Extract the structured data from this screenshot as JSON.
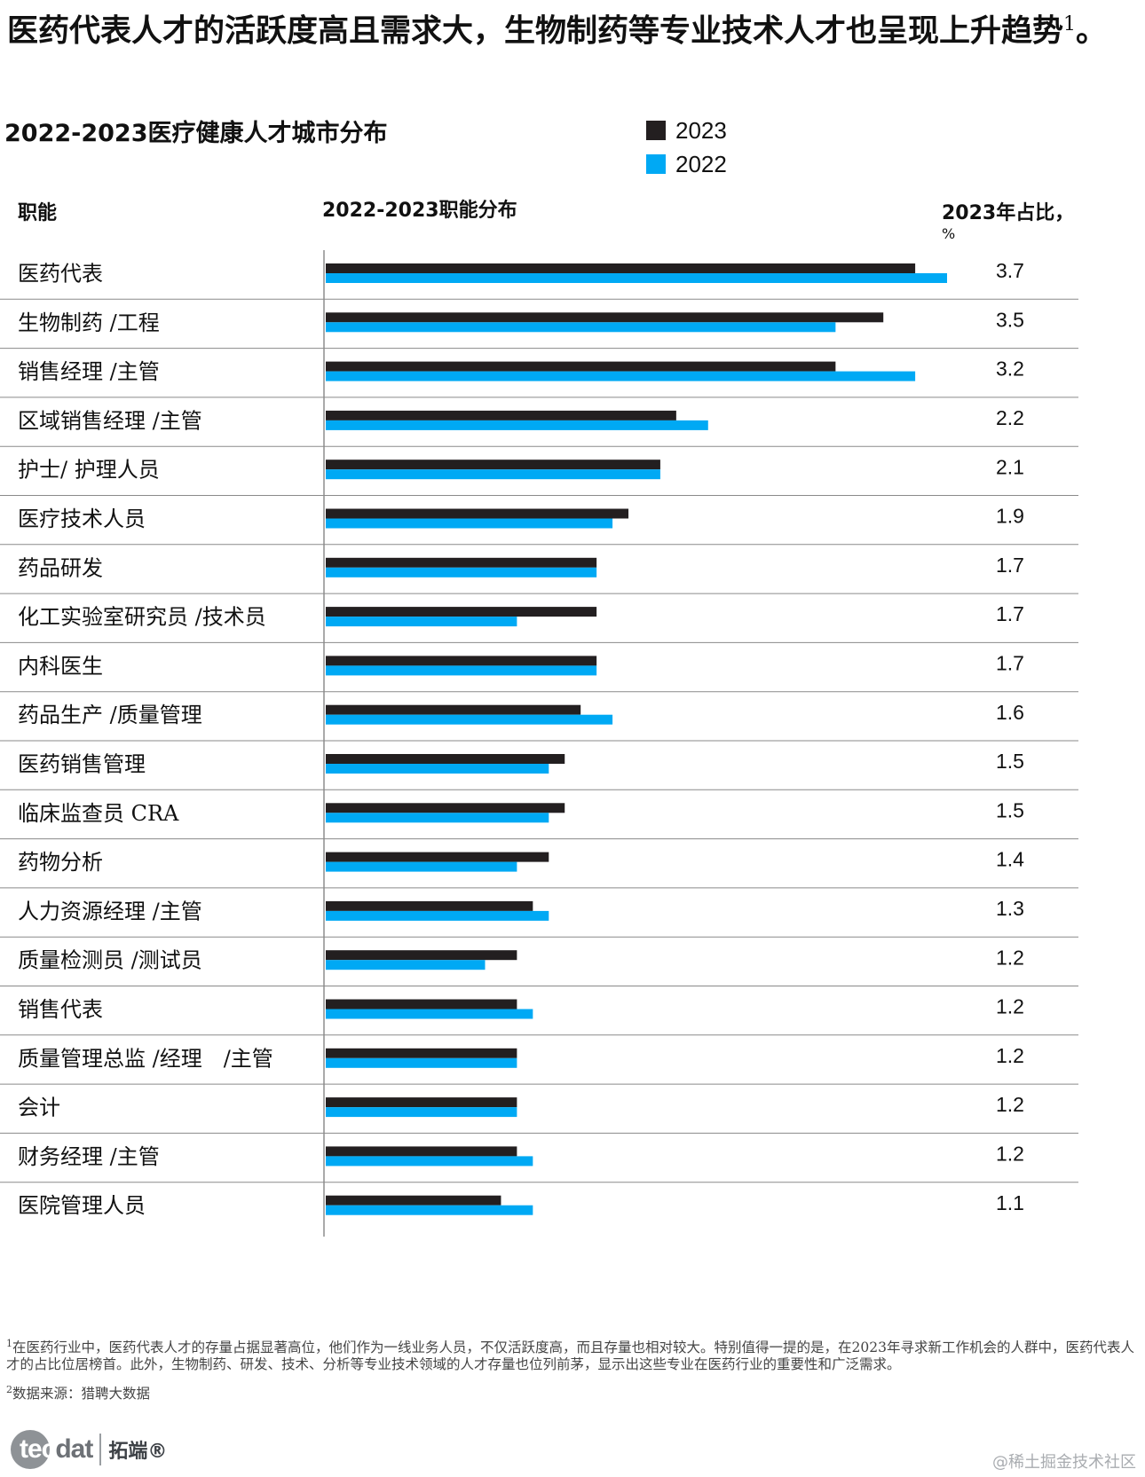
{
  "headline": "医药代表人才的活跃度高且需求大，生物制药等专业技术人才也呈现上升趋势",
  "headline_sup": "1",
  "headline_end": "。",
  "chart_data": {
    "type": "bar",
    "orientation": "horizontal",
    "title": "2022-2023医疗健康人才城市分布",
    "column_headers": {
      "function": "职能",
      "distribution": "2022-2023职能分布",
      "share": "2023年占比，",
      "share_unit": "%"
    },
    "categories": [
      "医药代表",
      "生物制药 /工程",
      "销售经理 /主管",
      "区域销售经理 /主管",
      "护士/ 护理人员",
      "医疗技术人员",
      "药品研发",
      "化工实验室研究员 /技术员",
      "内科医生",
      "药品生产 /质量管理",
      "医药销售管理",
      "临床监查员 CRA",
      "药物分析",
      "人力资源经理 /主管",
      "质量检测员 /测试员",
      "销售代表",
      "质量管理总监 /经理　/主管",
      "会计",
      "财务经理 /主管",
      "医院管理人员"
    ],
    "series": [
      {
        "name": "2023",
        "color": "#231f20",
        "values": [
          3.7,
          3.5,
          3.2,
          2.2,
          2.1,
          1.9,
          1.7,
          1.7,
          1.7,
          1.6,
          1.5,
          1.5,
          1.4,
          1.3,
          1.2,
          1.2,
          1.2,
          1.2,
          1.2,
          1.1
        ]
      },
      {
        "name": "2022",
        "color": "#00a9f4",
        "values": [
          3.9,
          3.2,
          3.7,
          2.4,
          2.1,
          1.8,
          1.7,
          1.2,
          1.7,
          1.8,
          1.4,
          1.4,
          1.2,
          1.4,
          1.0,
          1.3,
          1.2,
          1.2,
          1.3,
          1.3
        ]
      }
    ],
    "value_labels": [
      "3.7",
      "3.5",
      "3.2",
      "2.2",
      "2.1",
      "1.9",
      "1.7",
      "1.7",
      "1.7",
      "1.6",
      "1.5",
      "1.5",
      "1.4",
      "1.3",
      "1.2",
      "1.2",
      "1.2",
      "1.2",
      "1.2",
      "1.1"
    ],
    "xlim": [
      0,
      3.9
    ]
  },
  "legend": [
    {
      "label": "2023",
      "color": "#231f20"
    },
    {
      "label": "2022",
      "color": "#00a9f4"
    }
  ],
  "footnotes": [
    {
      "sup": "1",
      "text": "在医药行业中，医药代表人才的存量占据显著高位，他们作为一线业务人员，不仅活跃度高，而且存量也相对较大。特别值得一提的是，在2023年寻求新工作机会的人群中，医药代表人才的占比位居榜首。此外，生物制药、研发、技术、分析等专业技术领域的人才存量也位列前茅，显示出这些专业在医药行业的重要性和广泛需求。"
    },
    {
      "sup": "2",
      "text": "数据来源：猎聘大数据"
    }
  ],
  "logo": {
    "prefix": "tec",
    "suffix": "dat",
    "cn": "拓端®"
  },
  "watermark": "@稀土掘金技术社区"
}
